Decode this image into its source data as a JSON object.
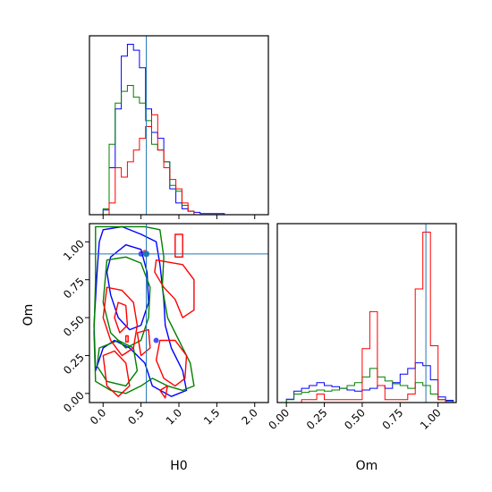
{
  "chart_data": {
    "type": "corner",
    "params": [
      "H0",
      "Om"
    ],
    "xlabels": [
      "H0",
      "Om"
    ],
    "ylabels": [
      "",
      "Om"
    ],
    "truths": {
      "H0": 0.57,
      "Om": 0.92
    },
    "ranges": {
      "H0": [
        -0.18,
        2.18
      ],
      "Om": [
        -0.06,
        1.12
      ]
    },
    "ticks": {
      "H0": {
        "values": [
          0.0,
          0.5,
          1.0,
          1.5,
          2.0
        ],
        "labels": [
          "0.0",
          "0.5",
          "1.0",
          "1.5",
          "2.0"
        ]
      },
      "Om": {
        "values": [
          0.0,
          0.25,
          0.5,
          0.75,
          1.0
        ],
        "labels": [
          "0.00",
          "0.25",
          "0.50",
          "0.75",
          "1.00"
        ]
      }
    },
    "colors": {
      "truth": "#1f77b4",
      "series": [
        "#0000ff",
        "#008000",
        "#ff0000"
      ]
    },
    "hist_H0": {
      "edges": [
        -0.08,
        0.0,
        0.08,
        0.16,
        0.24,
        0.32,
        0.4,
        0.48,
        0.56,
        0.64,
        0.72,
        0.8,
        0.88,
        0.96,
        1.04,
        1.12,
        1.2,
        1.28,
        1.36,
        1.44,
        1.52,
        1.6,
        1.68,
        1.76,
        1.84,
        1.92,
        2.0,
        2.08
      ],
      "series": [
        {
          "color": "#0000ff",
          "counts": [
            0,
            4,
            40,
            90,
            135,
            145,
            140,
            125,
            90,
            70,
            65,
            45,
            22,
            10,
            5,
            3,
            2,
            1,
            1,
            1,
            1,
            0,
            0,
            0,
            0,
            0,
            0
          ]
        },
        {
          "color": "#008000",
          "counts": [
            0,
            5,
            60,
            95,
            105,
            110,
            100,
            95,
            80,
            60,
            55,
            45,
            25,
            20,
            8,
            3,
            0,
            0,
            0,
            0,
            0,
            0,
            0,
            0,
            0,
            0,
            0
          ]
        },
        {
          "color": "#ff0000",
          "counts": [
            0,
            0,
            10,
            40,
            32,
            45,
            55,
            65,
            75,
            85,
            55,
            40,
            30,
            22,
            10,
            3,
            0,
            0,
            0,
            0,
            0,
            0,
            0,
            0,
            0,
            0,
            0
          ]
        }
      ]
    },
    "hist_Om": {
      "edges": [
        0.0,
        0.05,
        0.1,
        0.15,
        0.2,
        0.25,
        0.3,
        0.35,
        0.4,
        0.45,
        0.5,
        0.55,
        0.6,
        0.65,
        0.7,
        0.75,
        0.8,
        0.85,
        0.9,
        0.95,
        1.0,
        1.05,
        1.1
      ],
      "series": [
        {
          "color": "#0000ff",
          "counts": [
            6,
            20,
            25,
            30,
            35,
            30,
            28,
            25,
            22,
            20,
            22,
            25,
            30,
            25,
            35,
            50,
            60,
            70,
            65,
            40,
            10,
            4
          ]
        },
        {
          "color": "#008000",
          "counts": [
            5,
            15,
            18,
            20,
            22,
            20,
            22,
            25,
            30,
            35,
            45,
            60,
            45,
            38,
            33,
            30,
            25,
            35,
            30,
            15,
            5,
            2
          ]
        },
        {
          "color": "#ff0000",
          "counts": [
            0,
            0,
            5,
            5,
            15,
            5,
            5,
            5,
            5,
            5,
            95,
            160,
            30,
            5,
            5,
            5,
            15,
            200,
            300,
            100,
            5,
            0
          ]
        }
      ]
    },
    "contours": [
      {
        "color": "#0000ff",
        "paths": [
          [
            [
              0.0,
              1.08
            ],
            [
              0.25,
              1.1
            ],
            [
              0.5,
              1.05
            ],
            [
              0.7,
              1.0
            ],
            [
              0.75,
              0.85
            ],
            [
              0.8,
              0.62
            ],
            [
              0.82,
              0.45
            ],
            [
              0.9,
              0.3
            ],
            [
              1.05,
              0.15
            ],
            [
              1.1,
              0.02
            ],
            [
              0.9,
              -0.02
            ],
            [
              0.65,
              0.05
            ],
            [
              0.55,
              0.2
            ],
            [
              0.35,
              0.3
            ],
            [
              0.15,
              0.35
            ],
            [
              0.0,
              0.3
            ],
            [
              -0.1,
              0.15
            ],
            [
              -0.12,
              0.45
            ],
            [
              -0.08,
              0.8
            ],
            [
              -0.05,
              1.0
            ]
          ],
          [
            [
              0.1,
              0.9
            ],
            [
              0.3,
              0.98
            ],
            [
              0.5,
              0.95
            ],
            [
              0.58,
              0.8
            ],
            [
              0.6,
              0.6
            ],
            [
              0.5,
              0.45
            ],
            [
              0.35,
              0.42
            ],
            [
              0.2,
              0.5
            ],
            [
              0.1,
              0.65
            ],
            [
              0.05,
              0.8
            ]
          ]
        ]
      },
      {
        "color": "#008000",
        "paths": [
          [
            [
              -0.1,
              1.1
            ],
            [
              0.2,
              1.1
            ],
            [
              0.55,
              1.1
            ],
            [
              0.75,
              1.08
            ],
            [
              0.8,
              0.9
            ],
            [
              0.78,
              0.7
            ],
            [
              0.85,
              0.5
            ],
            [
              1.0,
              0.35
            ],
            [
              1.15,
              0.2
            ],
            [
              1.2,
              0.05
            ],
            [
              1.05,
              0.02
            ],
            [
              0.85,
              0.05
            ],
            [
              0.65,
              0.1
            ],
            [
              0.5,
              0.05
            ],
            [
              0.3,
              0.0
            ],
            [
              0.1,
              0.02
            ],
            [
              -0.1,
              0.08
            ],
            [
              -0.12,
              0.4
            ],
            [
              -0.1,
              0.75
            ]
          ],
          [
            [
              0.05,
              0.88
            ],
            [
              0.3,
              0.9
            ],
            [
              0.5,
              0.86
            ],
            [
              0.62,
              0.7
            ],
            [
              0.6,
              0.5
            ],
            [
              0.5,
              0.35
            ],
            [
              0.3,
              0.3
            ],
            [
              0.1,
              0.4
            ],
            [
              0.0,
              0.6
            ]
          ],
          [
            [
              -0.05,
              0.3
            ],
            [
              0.2,
              0.35
            ],
            [
              0.4,
              0.3
            ],
            [
              0.45,
              0.15
            ],
            [
              0.3,
              0.05
            ],
            [
              0.05,
              0.08
            ],
            [
              -0.08,
              0.18
            ]
          ]
        ]
      },
      {
        "color": "#ff0000",
        "paths": [
          [
            [
              0.95,
              1.05
            ],
            [
              1.05,
              1.05
            ],
            [
              1.05,
              0.9
            ],
            [
              0.95,
              0.9
            ]
          ],
          [
            [
              0.7,
              0.88
            ],
            [
              1.05,
              0.85
            ],
            [
              1.2,
              0.75
            ],
            [
              1.2,
              0.55
            ],
            [
              1.05,
              0.5
            ],
            [
              0.95,
              0.62
            ],
            [
              0.8,
              0.7
            ],
            [
              0.68,
              0.8
            ]
          ],
          [
            [
              0.05,
              0.7
            ],
            [
              0.25,
              0.68
            ],
            [
              0.4,
              0.6
            ],
            [
              0.45,
              0.45
            ],
            [
              0.4,
              0.3
            ],
            [
              0.25,
              0.25
            ],
            [
              0.1,
              0.35
            ],
            [
              0.0,
              0.5
            ]
          ],
          [
            [
              0.2,
              0.6
            ],
            [
              0.3,
              0.58
            ],
            [
              0.32,
              0.45
            ],
            [
              0.22,
              0.4
            ],
            [
              0.15,
              0.5
            ]
          ],
          [
            [
              0.45,
              0.4
            ],
            [
              0.6,
              0.42
            ],
            [
              0.62,
              0.3
            ],
            [
              0.5,
              0.25
            ]
          ],
          [
            [
              0.0,
              0.25
            ],
            [
              0.15,
              0.28
            ],
            [
              0.3,
              0.2
            ],
            [
              0.35,
              0.05
            ],
            [
              0.2,
              -0.02
            ],
            [
              0.05,
              0.05
            ]
          ],
          [
            [
              0.75,
              0.35
            ],
            [
              0.95,
              0.35
            ],
            [
              1.1,
              0.25
            ],
            [
              1.08,
              0.1
            ],
            [
              0.95,
              0.05
            ],
            [
              0.8,
              0.1
            ],
            [
              0.7,
              0.22
            ]
          ],
          [
            [
              0.3,
              0.38
            ],
            [
              0.33,
              0.38
            ],
            [
              0.33,
              0.34
            ],
            [
              0.3,
              0.34
            ]
          ],
          [
            [
              0.75,
              0.02
            ],
            [
              0.85,
              0.05
            ],
            [
              0.82,
              -0.03
            ]
          ]
        ]
      }
    ],
    "markers": [
      {
        "color": "#ff0000",
        "x": 0.55,
        "y": 0.93
      },
      {
        "color": "#0000ff",
        "x": 0.5,
        "y": 0.92
      },
      {
        "color": "#0000ff",
        "x": 0.7,
        "y": 0.35
      }
    ]
  }
}
